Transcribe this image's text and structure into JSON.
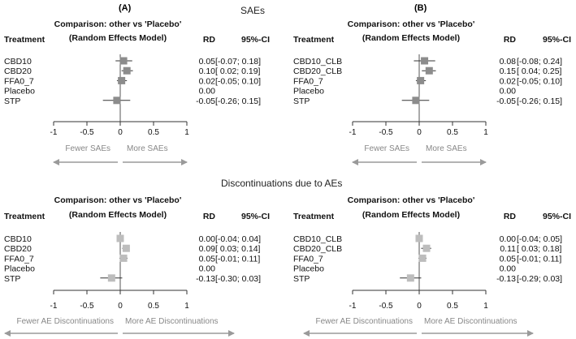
{
  "sections": [
    "SAEs",
    "Discontinuations due to AEs"
  ],
  "chart_data": [
    {
      "type": "forest",
      "panel_label": "(A)",
      "header_title": [
        "Comparison: other vs 'Placebo'",
        "(Random Effects Model)"
      ],
      "col_treatment": "Treatment",
      "col_rd": "RD",
      "col_ci": "95%-CI",
      "rows": [
        {
          "treatment": "CBD10",
          "rd": 0.05,
          "lo": -0.07,
          "hi": 0.18,
          "rd_text": "0.05",
          "ci_text": "[-0.07; 0.18]"
        },
        {
          "treatment": "CBD20",
          "rd": 0.1,
          "lo": 0.02,
          "hi": 0.19,
          "rd_text": "0.10",
          "ci_text": "[ 0.02; 0.19]"
        },
        {
          "treatment": "FFA0_7",
          "rd": 0.02,
          "lo": -0.05,
          "hi": 0.1,
          "rd_text": "0.02",
          "ci_text": "[-0.05; 0.10]"
        },
        {
          "treatment": "Placebo",
          "rd": 0.0,
          "lo": null,
          "hi": null,
          "rd_text": "0.00",
          "ci_text": ""
        },
        {
          "treatment": "STP",
          "rd": -0.05,
          "lo": -0.26,
          "hi": 0.15,
          "rd_text": "-0.05",
          "ci_text": "[-0.26; 0.15]"
        }
      ],
      "xlim": [
        -1,
        1
      ],
      "ticks": [
        "-1",
        "-0.5",
        "0",
        "0.5",
        "1"
      ],
      "tick_values": [
        -1,
        -0.5,
        0,
        0.5,
        1
      ],
      "direction_left": "Fewer SAEs",
      "direction_right": "More SAEs",
      "marker_color": "#8c8c8c"
    },
    {
      "type": "forest",
      "panel_label": "(B)",
      "header_title": [
        "Comparison: other vs 'Placebo'",
        "(Random Effects Model)"
      ],
      "col_treatment": "Treatment",
      "col_rd": "RD",
      "col_ci": "95%-CI",
      "rows": [
        {
          "treatment": "CBD10_CLB",
          "rd": 0.08,
          "lo": -0.08,
          "hi": 0.24,
          "rd_text": "0.08",
          "ci_text": "[-0.08; 0.24]"
        },
        {
          "treatment": "CBD20_CLB",
          "rd": 0.15,
          "lo": 0.04,
          "hi": 0.25,
          "rd_text": "0.15",
          "ci_text": "[ 0.04; 0.25]"
        },
        {
          "treatment": "FFA0_7",
          "rd": 0.02,
          "lo": -0.05,
          "hi": 0.1,
          "rd_text": "0.02",
          "ci_text": "[-0.05; 0.10]"
        },
        {
          "treatment": "Placebo",
          "rd": 0.0,
          "lo": null,
          "hi": null,
          "rd_text": "0.00",
          "ci_text": ""
        },
        {
          "treatment": "STP",
          "rd": -0.05,
          "lo": -0.26,
          "hi": 0.15,
          "rd_text": "-0.05",
          "ci_text": "[-0.26; 0.15]"
        }
      ],
      "xlim": [
        -1,
        1
      ],
      "ticks": [
        "-1",
        "-0.5",
        "0",
        "0.5",
        "1"
      ],
      "tick_values": [
        -1,
        -0.5,
        0,
        0.5,
        1
      ],
      "direction_left": "Fewer SAEs",
      "direction_right": "More SAEs",
      "marker_color": "#8c8c8c"
    },
    {
      "type": "forest",
      "panel_label": "",
      "header_title": [
        "Comparison: other vs 'Placebo'",
        "(Random Effects Model)"
      ],
      "col_treatment": "Treatment",
      "col_rd": "RD",
      "col_ci": "95%-CI",
      "rows": [
        {
          "treatment": "CBD10",
          "rd": 0.0,
          "lo": -0.04,
          "hi": 0.04,
          "rd_text": "0.00",
          "ci_text": "[-0.04; 0.04]"
        },
        {
          "treatment": "CBD20",
          "rd": 0.09,
          "lo": 0.03,
          "hi": 0.14,
          "rd_text": "0.09",
          "ci_text": "[ 0.03; 0.14]"
        },
        {
          "treatment": "FFA0_7",
          "rd": 0.05,
          "lo": -0.01,
          "hi": 0.11,
          "rd_text": "0.05",
          "ci_text": "[-0.01; 0.11]"
        },
        {
          "treatment": "Placebo",
          "rd": 0.0,
          "lo": null,
          "hi": null,
          "rd_text": "0.00",
          "ci_text": ""
        },
        {
          "treatment": "STP",
          "rd": -0.13,
          "lo": -0.3,
          "hi": 0.03,
          "rd_text": "-0.13",
          "ci_text": "[-0.30; 0.03]"
        }
      ],
      "xlim": [
        -1,
        1
      ],
      "ticks": [
        "-1",
        "-0.5",
        "0",
        "0.5",
        "1"
      ],
      "tick_values": [
        -1,
        -0.5,
        0,
        0.5,
        1
      ],
      "direction_left": "Fewer AE Discontinuations",
      "direction_right": "More AE Discontinuations",
      "marker_color": "#bdbdbd"
    },
    {
      "type": "forest",
      "panel_label": "",
      "header_title": [
        "Comparison: other vs 'Placebo'",
        "(Random Effects Model)"
      ],
      "col_treatment": "Treatment",
      "col_rd": "RD",
      "col_ci": "95%-CI",
      "rows": [
        {
          "treatment": "CBD10_CLB",
          "rd": 0.0,
          "lo": -0.04,
          "hi": 0.05,
          "rd_text": "0.00",
          "ci_text": "[-0.04; 0.05]"
        },
        {
          "treatment": "CBD20_CLB",
          "rd": 0.11,
          "lo": 0.03,
          "hi": 0.18,
          "rd_text": "0.11",
          "ci_text": "[ 0.03; 0.18]"
        },
        {
          "treatment": "FFA0_7",
          "rd": 0.05,
          "lo": -0.01,
          "hi": 0.11,
          "rd_text": "0.05",
          "ci_text": "[-0.01; 0.11]"
        },
        {
          "treatment": "Placebo",
          "rd": 0.0,
          "lo": null,
          "hi": null,
          "rd_text": "0.00",
          "ci_text": ""
        },
        {
          "treatment": "STP",
          "rd": -0.13,
          "lo": -0.29,
          "hi": 0.03,
          "rd_text": "-0.13",
          "ci_text": "[-0.29; 0.03]"
        }
      ],
      "xlim": [
        -1,
        1
      ],
      "ticks": [
        "-1",
        "-0.5",
        "0",
        "0.5",
        "1"
      ],
      "tick_values": [
        -1,
        -0.5,
        0,
        0.5,
        1
      ],
      "direction_left": "Fewer AE Discontinuations",
      "direction_right": "More AE Discontinuations",
      "marker_color": "#bdbdbd"
    }
  ]
}
